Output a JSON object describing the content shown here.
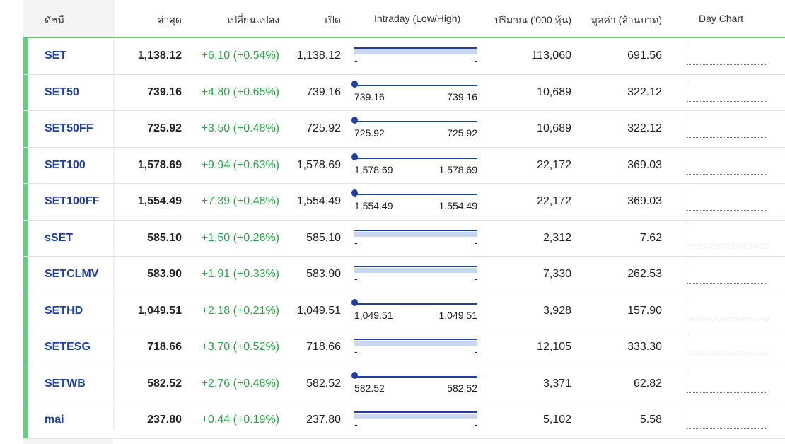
{
  "headers": {
    "index": "ดัชนี",
    "last": "ล่าสุด",
    "change": "เปลี่ยนแปลง",
    "open": "เปิด",
    "intraday": "Intraday (Low/High)",
    "volume": "ปริมาณ ('000 หุ้น)",
    "value": "มูลค่า (ล้านบาท)",
    "day_chart": "Day Chart"
  },
  "rows": [
    {
      "symbol": "SET",
      "last": "1,138.12",
      "change": "+6.10 (+0.54%)",
      "open": "1,138.12",
      "low": "-",
      "high": "-",
      "has_dot": false,
      "volume": "113,060",
      "value": "691.56"
    },
    {
      "symbol": "SET50",
      "last": "739.16",
      "change": "+4.80 (+0.65%)",
      "open": "739.16",
      "low": "739.16",
      "high": "739.16",
      "has_dot": true,
      "volume": "10,689",
      "value": "322.12"
    },
    {
      "symbol": "SET50FF",
      "last": "725.92",
      "change": "+3.50 (+0.48%)",
      "open": "725.92",
      "low": "725.92",
      "high": "725.92",
      "has_dot": true,
      "volume": "10,689",
      "value": "322.12"
    },
    {
      "symbol": "SET100",
      "last": "1,578.69",
      "change": "+9.94 (+0.63%)",
      "open": "1,578.69",
      "low": "1,578.69",
      "high": "1,578.69",
      "has_dot": true,
      "volume": "22,172",
      "value": "369.03"
    },
    {
      "symbol": "SET100FF",
      "last": "1,554.49",
      "change": "+7.39 (+0.48%)",
      "open": "1,554.49",
      "low": "1,554.49",
      "high": "1,554.49",
      "has_dot": true,
      "volume": "22,172",
      "value": "369.03"
    },
    {
      "symbol": "sSET",
      "last": "585.10",
      "change": "+1.50 (+0.26%)",
      "open": "585.10",
      "low": "-",
      "high": "-",
      "has_dot": false,
      "volume": "2,312",
      "value": "7.62"
    },
    {
      "symbol": "SETCLMV",
      "last": "583.90",
      "change": "+1.91 (+0.33%)",
      "open": "583.90",
      "low": "-",
      "high": "-",
      "has_dot": false,
      "volume": "7,330",
      "value": "262.53"
    },
    {
      "symbol": "SETHD",
      "last": "1,049.51",
      "change": "+2.18 (+0.21%)",
      "open": "1,049.51",
      "low": "1,049.51",
      "high": "1,049.51",
      "has_dot": true,
      "volume": "3,928",
      "value": "157.90"
    },
    {
      "symbol": "SETESG",
      "last": "718.66",
      "change": "+3.70 (+0.52%)",
      "open": "718.66",
      "low": "-",
      "high": "-",
      "has_dot": false,
      "volume": "12,105",
      "value": "333.30"
    },
    {
      "symbol": "SETWB",
      "last": "582.52",
      "change": "+2.76 (+0.48%)",
      "open": "582.52",
      "low": "582.52",
      "high": "582.52",
      "has_dot": true,
      "volume": "3,371",
      "value": "62.82"
    },
    {
      "symbol": "mai",
      "last": "237.80",
      "change": "+0.44 (+0.19%)",
      "open": "237.80",
      "low": "-",
      "high": "-",
      "has_dot": false,
      "volume": "5,102",
      "value": "5.58"
    }
  ],
  "colors": {
    "accent_green": "#5fd17a",
    "symbol_blue": "#1e3fa8",
    "change_green": "#27a745"
  }
}
